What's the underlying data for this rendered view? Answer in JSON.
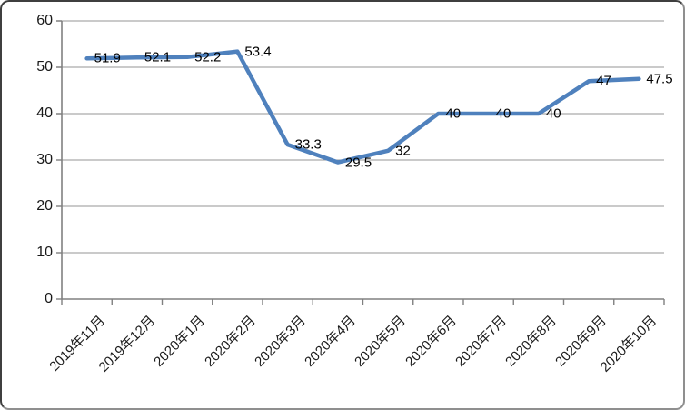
{
  "chart_data": {
    "type": "line",
    "title": "",
    "xlabel": "",
    "ylabel": "",
    "categories": [
      "2019年11月",
      "2019年12月",
      "2020年1月",
      "2020年2月",
      "2020年3月",
      "2020年4月",
      "2020年5月",
      "2020年6月",
      "2020年7月",
      "2020年8月",
      "2020年9月",
      "2020年10月"
    ],
    "series": [
      {
        "name": "",
        "values": [
          51.9,
          52.1,
          52.2,
          53.4,
          33.3,
          29.5,
          32,
          40,
          40,
          40,
          47,
          47.5
        ],
        "data_labels": [
          "51.9",
          "52.1",
          "52.2",
          "53.4",
          "33.3",
          "29.5",
          "32",
          "40",
          "40",
          "40",
          "47",
          "47.5"
        ]
      }
    ],
    "ylim": [
      0,
      60
    ],
    "yticks": [
      0,
      10,
      20,
      30,
      40,
      50,
      60
    ],
    "grid": true,
    "legend_position": "none",
    "colors": {
      "line": "#4F81BD",
      "gridline": "#969696",
      "axis": "#808080",
      "text": "#1a1a1a",
      "background": "#ffffff"
    }
  }
}
